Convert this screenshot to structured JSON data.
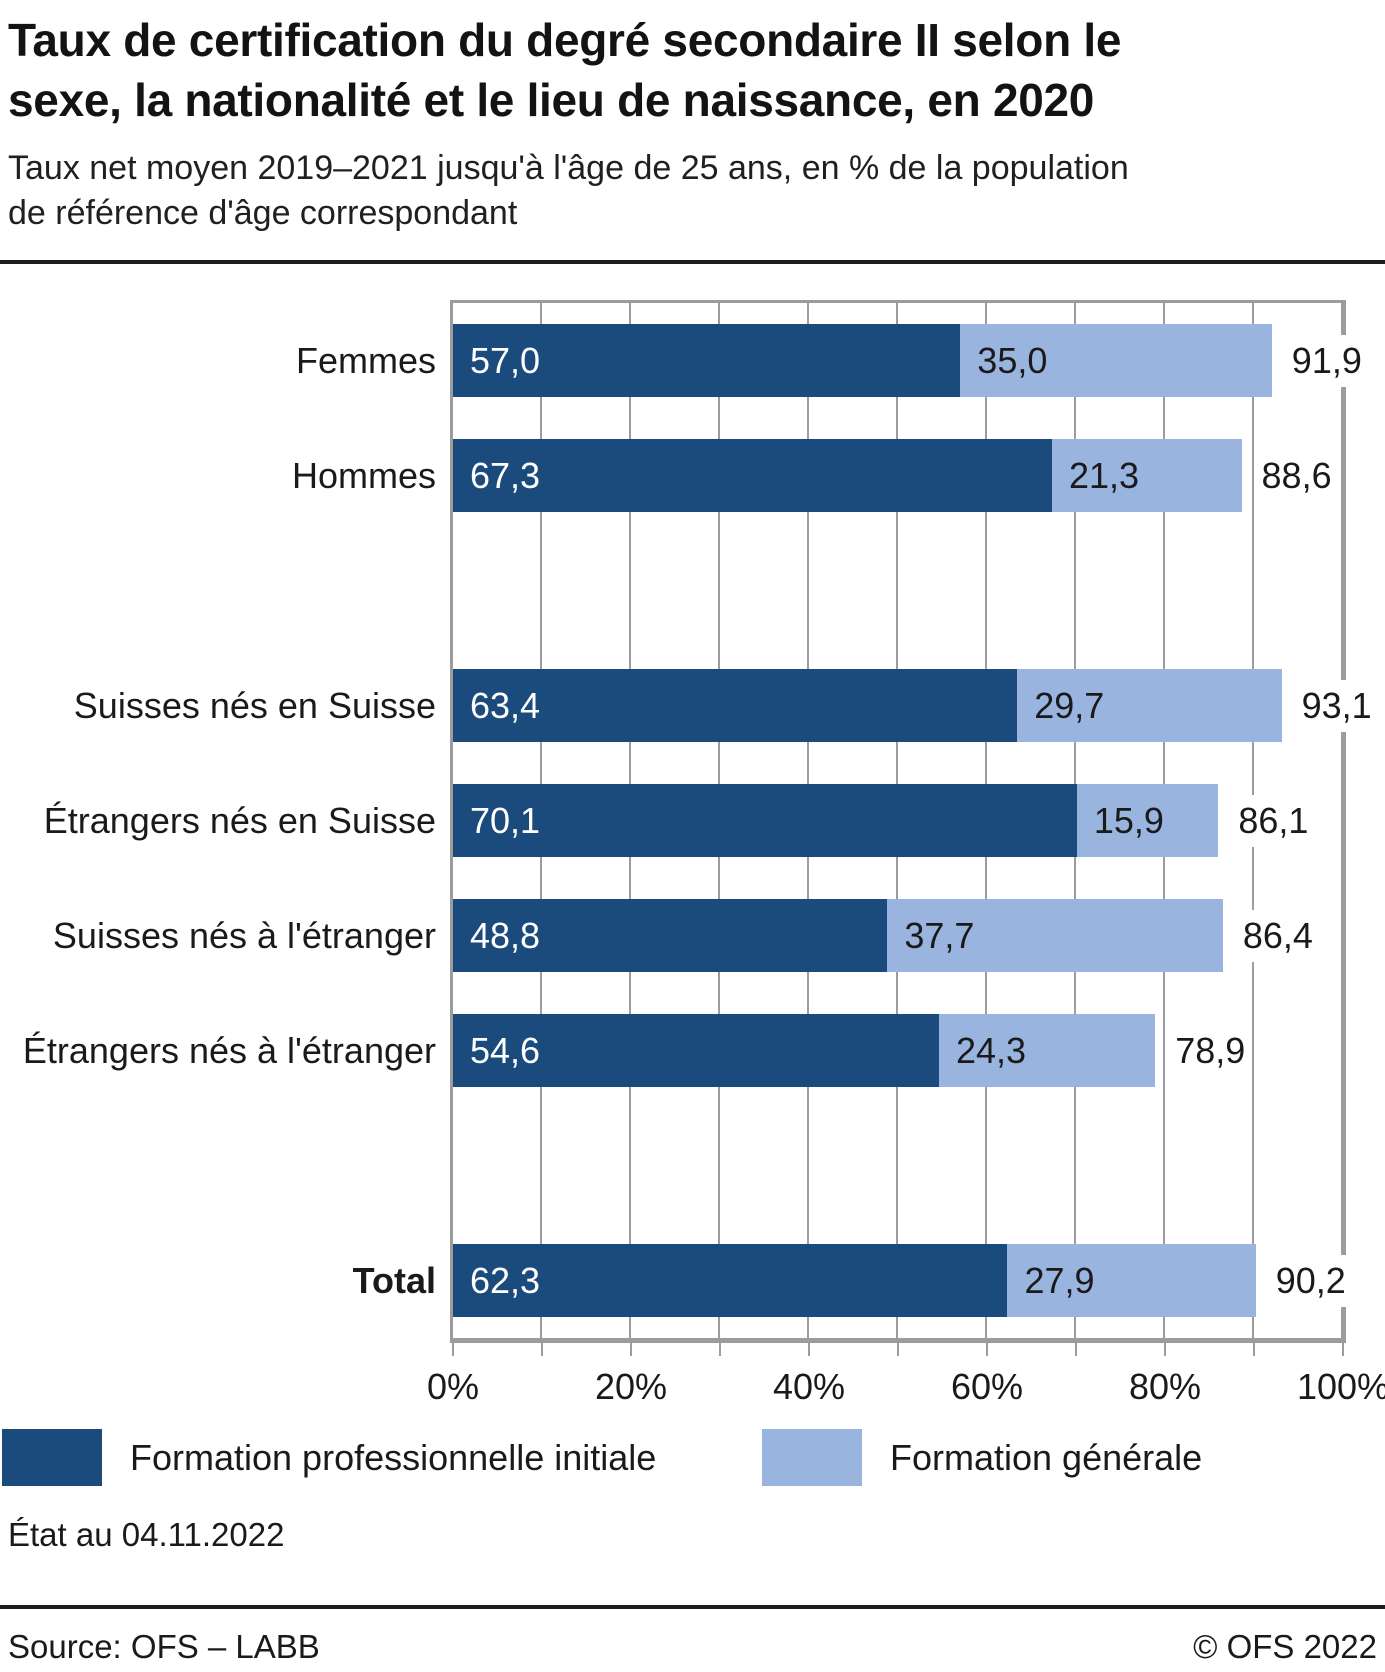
{
  "header": {
    "title_lines": [
      "Taux de certification du degré secondaire II selon le",
      "sexe, la nationalité et le lieu de naissance, en 2020"
    ],
    "subtitle_lines": [
      "Taux net moyen 2019–2021 jusqu'à l'âge de 25 ans, en % de la population",
      "de référence d'âge correspondant"
    ]
  },
  "colors": {
    "formation_professionnelle": "#1b4a7d",
    "formation_generale": "#9ab4e0",
    "grid": "#9c9c9c",
    "divider": "#1d1d1b"
  },
  "chart_data": {
    "type": "bar",
    "orientation": "horizontal",
    "stacked": true,
    "xlim": [
      0,
      100
    ],
    "x_ticks": [
      "0%",
      "20%",
      "40%",
      "60%",
      "80%",
      "100%"
    ],
    "grid_step_percent": 10,
    "grid": true,
    "legend_position": "bottom",
    "categories": [
      "Femmes",
      "Hommes",
      "Suisses nés en Suisse",
      "Étrangers nés en Suisse",
      "Suisses nés à l'étranger",
      "Étrangers nés à l'étranger",
      "Total"
    ],
    "series": [
      {
        "name": "Formation professionnelle initiale",
        "color": "#1b4a7d",
        "values": [
          57.0,
          67.3,
          63.4,
          70.1,
          48.8,
          54.6,
          62.3
        ]
      },
      {
        "name": "Formation générale",
        "color": "#9ab4e0",
        "values": [
          35.0,
          21.3,
          29.7,
          15.9,
          37.7,
          24.3,
          27.9
        ]
      }
    ],
    "totals": [
      91.9,
      88.6,
      93.1,
      86.1,
      86.4,
      78.9,
      90.2
    ],
    "rows": [
      {
        "label": "Femmes",
        "bold": false,
        "fp": 57.0,
        "fg": 35.0,
        "fp_label": "57,0",
        "fg_label": "35,0",
        "total_label": "91,9"
      },
      {
        "label": "Hommes",
        "bold": false,
        "fp": 67.3,
        "fg": 21.3,
        "fp_label": "67,3",
        "fg_label": "21,3",
        "total_label": "88,6"
      },
      {
        "label": "Suisses nés en Suisse",
        "bold": false,
        "fp": 63.4,
        "fg": 29.7,
        "fp_label": "63,4",
        "fg_label": "29,7",
        "total_label": "93,1"
      },
      {
        "label": "Étrangers nés en Suisse",
        "bold": false,
        "fp": 70.1,
        "fg": 15.9,
        "fp_label": "70,1",
        "fg_label": "15,9",
        "total_label": "86,1"
      },
      {
        "label": "Suisses nés à l'étranger",
        "bold": false,
        "fp": 48.8,
        "fg": 37.7,
        "fp_label": "48,8",
        "fg_label": "37,7",
        "total_label": "86,4"
      },
      {
        "label": "Étrangers nés à l'étranger",
        "bold": false,
        "fp": 54.6,
        "fg": 24.3,
        "fp_label": "54,6",
        "fg_label": "24,3",
        "total_label": "78,9"
      },
      {
        "label": "Total",
        "bold": true,
        "fp": 62.3,
        "fg": 27.9,
        "fp_label": "62,3",
        "fg_label": "27,9",
        "total_label": "90,2"
      }
    ],
    "groups": [
      [
        0,
        1
      ],
      [
        2,
        3,
        4,
        5
      ],
      [
        6
      ]
    ]
  },
  "legend": [
    {
      "label": "Formation professionnelle initiale",
      "color": "#1b4a7d"
    },
    {
      "label": "Formation générale",
      "color": "#9ab4e0"
    }
  ],
  "footer": {
    "status": "État au 04.11.2022",
    "source": "Source: OFS – LABB",
    "copyright": "© OFS 2022"
  }
}
